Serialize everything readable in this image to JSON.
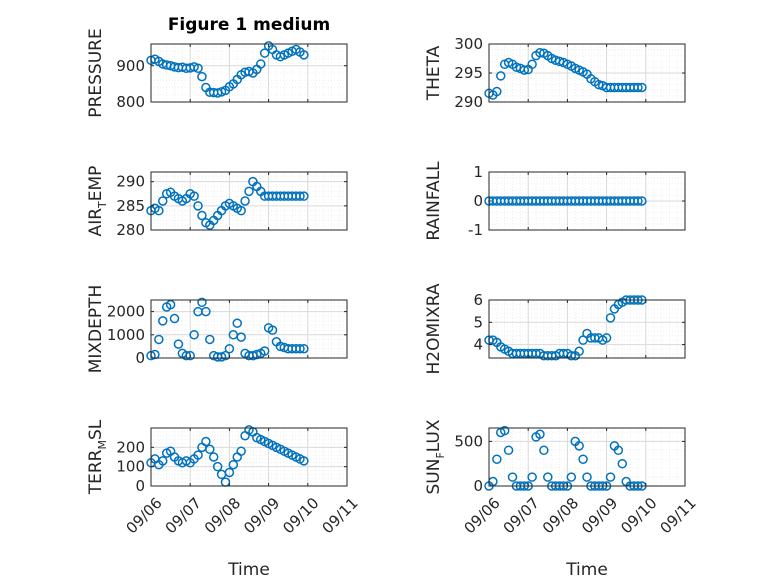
{
  "figure": {
    "title": "Figure 1 medium"
  },
  "colors": {
    "marker": "#0072bd",
    "axis": "#262626",
    "grid": "#d9d9d9",
    "minor_grid": "#ebebeb"
  },
  "chart_data": [
    {
      "type": "scatter",
      "ylabel": "PRESSURE",
      "ylim": [
        800,
        960
      ],
      "yticks": [
        800,
        900
      ],
      "x": [
        0.0,
        0.1,
        0.2,
        0.3,
        0.4,
        0.5,
        0.6,
        0.7,
        0.8,
        0.9,
        1.0,
        1.1,
        1.2,
        1.3,
        1.4,
        1.5,
        1.6,
        1.7,
        1.8,
        1.9,
        2.0,
        2.1,
        2.2,
        2.3,
        2.4,
        2.5,
        2.6,
        2.7,
        2.8,
        2.9,
        3.0,
        3.1,
        3.2,
        3.3,
        3.4,
        3.5,
        3.6,
        3.7,
        3.8,
        3.9
      ],
      "y": [
        915,
        918,
        912,
        905,
        902,
        900,
        897,
        895,
        896,
        893,
        894,
        897,
        893,
        870,
        840,
        827,
        826,
        825,
        828,
        832,
        842,
        850,
        862,
        875,
        882,
        884,
        880,
        890,
        905,
        935,
        955,
        945,
        930,
        925,
        930,
        935,
        940,
        945,
        938,
        930
      ]
    },
    {
      "type": "scatter",
      "ylabel": "THETA",
      "ylim": [
        290,
        300
      ],
      "yticks": [
        290,
        295,
        300
      ],
      "x": [
        0.0,
        0.1,
        0.2,
        0.3,
        0.4,
        0.5,
        0.6,
        0.7,
        0.8,
        0.9,
        1.0,
        1.1,
        1.2,
        1.3,
        1.4,
        1.5,
        1.6,
        1.7,
        1.8,
        1.9,
        2.0,
        2.1,
        2.2,
        2.3,
        2.4,
        2.5,
        2.6,
        2.7,
        2.8,
        2.9,
        3.0,
        3.1,
        3.2,
        3.3,
        3.4,
        3.5,
        3.6,
        3.7,
        3.8,
        3.9
      ],
      "y": [
        291.5,
        291.2,
        291.8,
        294.5,
        296.5,
        296.8,
        296.5,
        296.0,
        295.8,
        295.5,
        295.6,
        296.5,
        298.0,
        298.5,
        298.4,
        298.0,
        297.5,
        297.2,
        297.0,
        296.8,
        296.5,
        296.2,
        295.8,
        295.5,
        295.2,
        294.8,
        294.0,
        293.5,
        293.0,
        292.8,
        292.5,
        292.5,
        292.5,
        292.5,
        292.5,
        292.5,
        292.5,
        292.5,
        292.5,
        292.5
      ]
    },
    {
      "type": "scatter",
      "ylabel": "AIR_TEMP",
      "ylim": [
        280,
        292
      ],
      "yticks": [
        280,
        285,
        290
      ],
      "x": [
        0.0,
        0.1,
        0.2,
        0.3,
        0.4,
        0.5,
        0.6,
        0.7,
        0.8,
        0.9,
        1.0,
        1.1,
        1.2,
        1.3,
        1.4,
        1.5,
        1.6,
        1.7,
        1.8,
        1.9,
        2.0,
        2.1,
        2.2,
        2.3,
        2.4,
        2.5,
        2.6,
        2.7,
        2.8,
        2.9,
        3.0,
        3.1,
        3.2,
        3.3,
        3.4,
        3.5,
        3.6,
        3.7,
        3.8,
        3.9
      ],
      "y": [
        284,
        284.5,
        284,
        286,
        287.5,
        287.8,
        287,
        286.5,
        286,
        286.5,
        287.5,
        287,
        285,
        283,
        281.5,
        281,
        282,
        283,
        284,
        285,
        285.5,
        285,
        284.5,
        284,
        286,
        288,
        290,
        289,
        288,
        287,
        287,
        287,
        287,
        287,
        287,
        287,
        287,
        287,
        287,
        287
      ]
    },
    {
      "type": "scatter",
      "ylabel": "RAINFALL",
      "ylim": [
        -1,
        1
      ],
      "yticks": [
        -1,
        0,
        1
      ],
      "x": [
        0.0,
        0.1,
        0.2,
        0.3,
        0.4,
        0.5,
        0.6,
        0.7,
        0.8,
        0.9,
        1.0,
        1.1,
        1.2,
        1.3,
        1.4,
        1.5,
        1.6,
        1.7,
        1.8,
        1.9,
        2.0,
        2.1,
        2.2,
        2.3,
        2.4,
        2.5,
        2.6,
        2.7,
        2.8,
        2.9,
        3.0,
        3.1,
        3.2,
        3.3,
        3.4,
        3.5,
        3.6,
        3.7,
        3.8,
        3.9
      ],
      "y": [
        0,
        0,
        0,
        0,
        0,
        0,
        0,
        0,
        0,
        0,
        0,
        0,
        0,
        0,
        0,
        0,
        0,
        0,
        0,
        0,
        0,
        0,
        0,
        0,
        0,
        0,
        0,
        0,
        0,
        0,
        0,
        0,
        0,
        0,
        0,
        0,
        0,
        0,
        0,
        0
      ]
    },
    {
      "type": "scatter",
      "ylabel": "MIXDEPTH",
      "ylim": [
        0,
        2500
      ],
      "yticks": [
        0,
        1000,
        2000
      ],
      "x": [
        0.0,
        0.1,
        0.2,
        0.3,
        0.4,
        0.5,
        0.6,
        0.7,
        0.8,
        0.9,
        1.0,
        1.1,
        1.2,
        1.3,
        1.4,
        1.5,
        1.6,
        1.7,
        1.8,
        1.9,
        2.0,
        2.1,
        2.2,
        2.3,
        2.4,
        2.5,
        2.6,
        2.7,
        2.8,
        2.9,
        3.0,
        3.1,
        3.2,
        3.3,
        3.4,
        3.5,
        3.6,
        3.7,
        3.8,
        3.9
      ],
      "y": [
        100,
        150,
        800,
        1600,
        2200,
        2300,
        1700,
        600,
        200,
        100,
        100,
        1000,
        2000,
        2400,
        2000,
        800,
        100,
        50,
        50,
        100,
        400,
        1000,
        1500,
        900,
        200,
        100,
        100,
        150,
        200,
        300,
        1300,
        1200,
        700,
        500,
        450,
        400,
        400,
        400,
        400,
        400
      ]
    },
    {
      "type": "scatter",
      "ylabel": "H2OMIXRA",
      "ylim": [
        3.4,
        6
      ],
      "yticks": [
        4,
        5,
        6
      ],
      "x": [
        0.0,
        0.1,
        0.2,
        0.3,
        0.4,
        0.5,
        0.6,
        0.7,
        0.8,
        0.9,
        1.0,
        1.1,
        1.2,
        1.3,
        1.4,
        1.5,
        1.6,
        1.7,
        1.8,
        1.9,
        2.0,
        2.1,
        2.2,
        2.3,
        2.4,
        2.5,
        2.6,
        2.7,
        2.8,
        2.9,
        3.0,
        3.1,
        3.2,
        3.3,
        3.4,
        3.5,
        3.6,
        3.7,
        3.8,
        3.9
      ],
      "y": [
        4.2,
        4.2,
        4.1,
        3.9,
        3.8,
        3.7,
        3.6,
        3.6,
        3.6,
        3.6,
        3.6,
        3.6,
        3.6,
        3.6,
        3.5,
        3.5,
        3.5,
        3.5,
        3.6,
        3.6,
        3.6,
        3.5,
        3.5,
        3.7,
        4.2,
        4.5,
        4.3,
        4.3,
        4.3,
        4.2,
        4.3,
        5.2,
        5.6,
        5.8,
        5.9,
        6.0,
        6.0,
        6.0,
        6.0,
        6.0
      ]
    },
    {
      "type": "scatter",
      "ylabel": "TERR_MSL",
      "ylim": [
        0,
        300
      ],
      "yticks": [
        0,
        100,
        200
      ],
      "x": [
        0.0,
        0.1,
        0.2,
        0.3,
        0.4,
        0.5,
        0.6,
        0.7,
        0.8,
        0.9,
        1.0,
        1.1,
        1.2,
        1.3,
        1.4,
        1.5,
        1.6,
        1.7,
        1.8,
        1.9,
        2.0,
        2.1,
        2.2,
        2.3,
        2.4,
        2.5,
        2.6,
        2.7,
        2.8,
        2.9,
        3.0,
        3.1,
        3.2,
        3.3,
        3.4,
        3.5,
        3.6,
        3.7,
        3.8,
        3.9
      ],
      "y": [
        120,
        140,
        110,
        130,
        170,
        180,
        150,
        130,
        120,
        130,
        120,
        140,
        160,
        200,
        230,
        190,
        150,
        100,
        60,
        20,
        70,
        110,
        150,
        180,
        260,
        290,
        280,
        250,
        240,
        230,
        220,
        210,
        200,
        190,
        180,
        170,
        160,
        150,
        140,
        130
      ]
    },
    {
      "type": "scatter",
      "ylabel": "SUN_FLUX",
      "ylim": [
        0,
        650
      ],
      "yticks": [
        0,
        500
      ],
      "x": [
        0.0,
        0.1,
        0.2,
        0.3,
        0.4,
        0.5,
        0.6,
        0.7,
        0.8,
        0.9,
        1.0,
        1.1,
        1.2,
        1.3,
        1.4,
        1.5,
        1.6,
        1.7,
        1.8,
        1.9,
        2.0,
        2.1,
        2.2,
        2.3,
        2.4,
        2.5,
        2.6,
        2.7,
        2.8,
        2.9,
        3.0,
        3.1,
        3.2,
        3.3,
        3.4,
        3.5,
        3.6,
        3.7,
        3.8,
        3.9
      ],
      "y": [
        0,
        50,
        300,
        600,
        620,
        400,
        100,
        0,
        0,
        0,
        0,
        100,
        550,
        580,
        400,
        100,
        0,
        0,
        0,
        0,
        0,
        100,
        500,
        450,
        300,
        100,
        0,
        0,
        0,
        0,
        0,
        100,
        450,
        400,
        250,
        50,
        0,
        0,
        0,
        0
      ]
    }
  ],
  "x_axis": {
    "xlabel": "Time",
    "range": [
      0,
      5
    ],
    "ticks": [
      0,
      1,
      2,
      3,
      4,
      5
    ],
    "tick_labels": [
      "09/06",
      "09/07",
      "09/08",
      "09/09",
      "09/10",
      "09/11"
    ]
  }
}
